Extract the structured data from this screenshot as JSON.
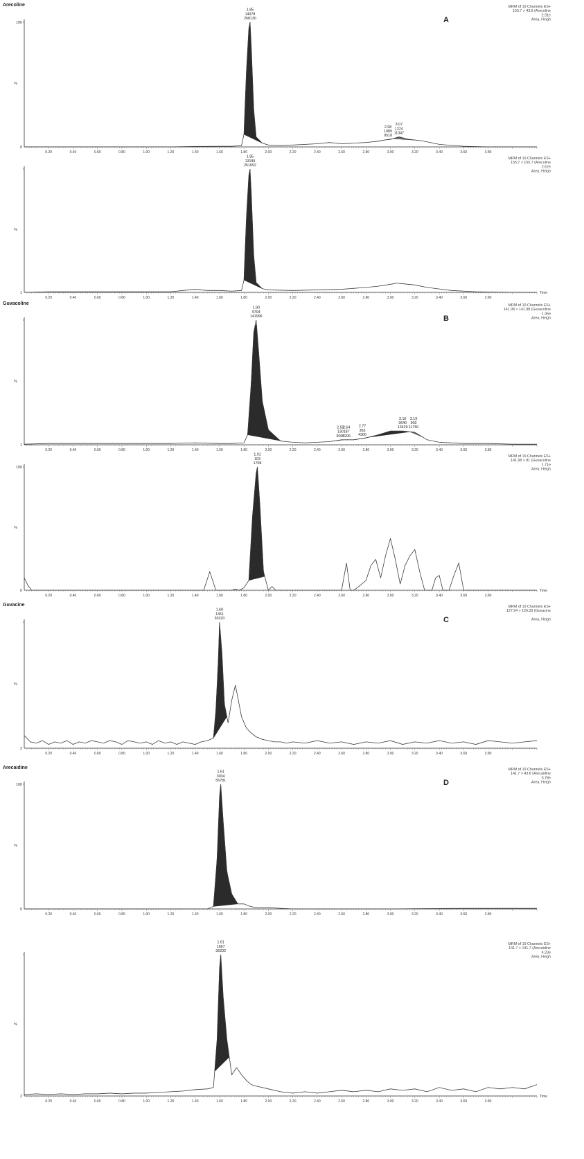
{
  "chart_data": [
    {
      "type": "line",
      "group_title": "Arecoline",
      "panel_letter": "A",
      "info_lines": [
        "MRM of 19 Channels ES+",
        "155.7 > 43.8 (Arecoline",
        "2.91e",
        "Area, Heigh"
      ],
      "y_ticks": [
        "100",
        "0"
      ],
      "y_axis_label": "%",
      "x_ticks": [
        "0.20",
        "0.40",
        "0.60",
        "0.80",
        "1.00",
        "1.20",
        "1.40",
        "1.60",
        "1.80",
        "2.00",
        "2.20",
        "2.40",
        "2.60",
        "2.80",
        "3.00",
        "3.20",
        "3.40",
        "3.60",
        "3.80"
      ],
      "x_axis_label": "",
      "xlim": [
        0,
        4.2
      ],
      "ylim": [
        0,
        100
      ],
      "shaded_peaks": [
        {
          "start": 1.8,
          "end": 1.95,
          "tone": "dark"
        },
        {
          "start": 2.87,
          "end": 3.02,
          "tone": "mid"
        },
        {
          "start": 3.02,
          "end": 3.22,
          "tone": "mid"
        }
      ],
      "peak_labels": [
        {
          "x": 1.85,
          "y": 100,
          "lines": [
            "1.85",
            "14978",
            "268130"
          ]
        },
        {
          "x": 2.98,
          "y": 6,
          "lines": [
            "2.98",
            "1089",
            "9518"
          ]
        },
        {
          "x": 3.07,
          "y": 8,
          "lines": [
            "3.07",
            "1224",
            "11347"
          ]
        }
      ],
      "x": [
        0.0,
        0.2,
        0.4,
        0.6,
        0.8,
        1.0,
        1.2,
        1.4,
        1.6,
        1.7,
        1.78,
        1.8,
        1.82,
        1.84,
        1.85,
        1.86,
        1.88,
        1.9,
        1.95,
        2.0,
        2.1,
        2.2,
        2.4,
        2.5,
        2.6,
        2.7,
        2.8,
        2.9,
        2.95,
        3.0,
        3.07,
        3.15,
        3.25,
        3.4,
        3.6,
        3.8,
        4.0,
        4.2
      ],
      "y": [
        0,
        0,
        0,
        0,
        0,
        0,
        0,
        0.3,
        0.5,
        0.5,
        1,
        10,
        60,
        95,
        100,
        80,
        30,
        8,
        3,
        1.5,
        1,
        1.5,
        2.5,
        3.5,
        2.5,
        3,
        3.5,
        4.5,
        5.5,
        6,
        8,
        6,
        5,
        2,
        0.5,
        0,
        0,
        0
      ]
    },
    {
      "type": "line",
      "group_title": "",
      "panel_letter": "",
      "info_lines": [
        "MRM of 19 Channels ES+",
        "155.7 > 155.7 (Arecoline",
        "2.67e",
        "Area, Heigh"
      ],
      "y_ticks": [
        "",
        "1"
      ],
      "y_axis_label": "%",
      "x_ticks": [
        "0.20",
        "0.40",
        "0.60",
        "0.80",
        "1.00",
        "1.20",
        "1.40",
        "1.60",
        "1.80",
        "2.00",
        "2.20",
        "2.40",
        "2.60",
        "2.80",
        "3.00",
        "3.20",
        "3.40",
        "3.60",
        "3.80"
      ],
      "x_axis_label": "Time",
      "xlim": [
        0,
        4.2
      ],
      "ylim": [
        0,
        100
      ],
      "shaded_peaks": [
        {
          "start": 1.8,
          "end": 1.95,
          "tone": "dark"
        }
      ],
      "peak_labels": [
        {
          "x": 1.85,
          "y": 100,
          "lines": [
            "1.85",
            "13199",
            "261692"
          ]
        }
      ],
      "x": [
        0.0,
        0.2,
        0.4,
        0.6,
        0.8,
        1.0,
        1.2,
        1.3,
        1.4,
        1.5,
        1.6,
        1.7,
        1.78,
        1.8,
        1.82,
        1.84,
        1.85,
        1.86,
        1.88,
        1.9,
        1.95,
        2.0,
        2.2,
        2.4,
        2.6,
        2.8,
        2.9,
        3.0,
        3.05,
        3.1,
        3.2,
        3.3,
        3.5,
        3.7,
        4.0,
        4.2
      ],
      "y": [
        0,
        0.5,
        0.5,
        0.5,
        0.5,
        0.5,
        0.5,
        1.5,
        2.5,
        1.5,
        1.5,
        1,
        1.5,
        10,
        60,
        95,
        100,
        80,
        30,
        8,
        3,
        2,
        1.5,
        2,
        2.5,
        4,
        5,
        6.5,
        7.5,
        7,
        6,
        4,
        1.5,
        0.5,
        0,
        0
      ]
    },
    {
      "type": "line",
      "group_title": "Guvacoline",
      "panel_letter": "B",
      "info_lines": [
        "MRM of 19 Channels ES+",
        "141.98 > 141.98 (Guvacoline",
        "1.45e",
        "Area, Heigh"
      ],
      "y_ticks": [
        "",
        "1"
      ],
      "y_axis_label": "%",
      "x_ticks": [
        "0.20",
        "0.40",
        "0.60",
        "0.80",
        "1.00",
        "1.20",
        "1.40",
        "1.60",
        "1.80",
        "2.00",
        "2.20",
        "2.40",
        "2.60",
        "2.80",
        "3.00",
        "3.20",
        "3.40",
        "3.60",
        "3.80"
      ],
      "x_axis_label": "",
      "xlim": [
        0,
        4.2
      ],
      "ylim": [
        0,
        100
      ],
      "shaded_peaks": [
        {
          "start": 1.83,
          "end": 2.12,
          "tone": "dark"
        },
        {
          "start": 2.52,
          "end": 2.62,
          "tone": "mid"
        },
        {
          "start": 2.62,
          "end": 2.7,
          "tone": "mid"
        },
        {
          "start": 2.7,
          "end": 2.82,
          "tone": "mid"
        },
        {
          "start": 2.82,
          "end": 3.16,
          "tone": "dark"
        },
        {
          "start": 3.16,
          "end": 3.26,
          "tone": "mid"
        }
      ],
      "peak_labels": [
        {
          "x": 1.9,
          "y": 100,
          "lines": [
            "1.90",
            "9704",
            "141996"
          ]
        },
        {
          "x": 2.59,
          "y": 4,
          "lines": [
            "2.59",
            "130",
            "3000"
          ]
        },
        {
          "x": 2.64,
          "y": 4,
          "lines": [
            "2.64",
            "187",
            "3206"
          ]
        },
        {
          "x": 2.77,
          "y": 5,
          "lines": [
            "2.77",
            "363",
            "4300"
          ]
        },
        {
          "x": 3.1,
          "y": 11,
          "lines": [
            "3.10",
            "3640",
            "13429"
          ]
        },
        {
          "x": 3.19,
          "y": 11,
          "lines": [
            "3.19",
            "903",
            "11750"
          ]
        }
      ],
      "x": [
        0.0,
        0.2,
        0.4,
        0.6,
        0.8,
        1.0,
        1.2,
        1.4,
        1.6,
        1.7,
        1.8,
        1.83,
        1.86,
        1.88,
        1.9,
        1.92,
        1.95,
        2.0,
        2.1,
        2.2,
        2.3,
        2.4,
        2.5,
        2.6,
        2.7,
        2.8,
        2.9,
        3.0,
        3.1,
        3.2,
        3.25,
        3.3,
        3.4,
        3.5,
        3.6,
        3.8,
        4.0,
        4.2
      ],
      "y": [
        0.5,
        1,
        1,
        1,
        1,
        1,
        1,
        1.5,
        1,
        1,
        1.5,
        8,
        50,
        90,
        100,
        75,
        35,
        12,
        3,
        2,
        1.5,
        2,
        2.5,
        4,
        4,
        5.5,
        8,
        11,
        11,
        10,
        7,
        4,
        2,
        1.5,
        1,
        1,
        0.5,
        0.5
      ]
    },
    {
      "type": "line",
      "group_title": "",
      "panel_letter": "",
      "info_lines": [
        "MRM of 19 Channels ES+",
        "141.98 > 81 (Guvacoline",
        "1.71e",
        "Area, Heigh"
      ],
      "y_ticks": [
        "100",
        "0"
      ],
      "y_axis_label": "%",
      "x_ticks": [
        "0.20",
        "0.40",
        "0.60",
        "0.80",
        "1.00",
        "1.20",
        "1.40",
        "1.60",
        "1.80",
        "2.00",
        "2.20",
        "2.40",
        "2.60",
        "2.80",
        "3.00",
        "3.20",
        "3.40",
        "3.60",
        "3.80"
      ],
      "x_axis_label": "Time",
      "xlim": [
        0,
        4.2
      ],
      "ylim": [
        0,
        100
      ],
      "shaded_peaks": [
        {
          "start": 1.84,
          "end": 1.97,
          "tone": "dark"
        }
      ],
      "peak_labels": [
        {
          "x": 1.91,
          "y": 100,
          "lines": [
            "1.91",
            "103",
            "1708"
          ]
        }
      ],
      "x": [
        0.0,
        0.03,
        0.06,
        0.1,
        1.4,
        1.47,
        1.52,
        1.57,
        1.62,
        1.7,
        1.73,
        1.76,
        1.8,
        1.84,
        1.87,
        1.9,
        1.91,
        1.93,
        1.96,
        2.0,
        2.03,
        2.06,
        2.1,
        2.6,
        2.64,
        2.67,
        2.7,
        2.74,
        2.8,
        2.84,
        2.88,
        2.92,
        2.96,
        3.0,
        3.04,
        3.08,
        3.12,
        3.16,
        3.2,
        3.24,
        3.28,
        3.34,
        3.37,
        3.4,
        3.43,
        3.48,
        3.52,
        3.56,
        3.6,
        4.2
      ],
      "y": [
        10,
        4,
        0,
        0,
        0,
        0,
        15,
        0,
        0,
        0,
        1,
        0,
        2,
        8,
        60,
        95,
        100,
        70,
        15,
        0,
        3,
        0,
        0,
        0,
        22,
        0,
        0,
        3,
        8,
        20,
        25,
        10,
        28,
        42,
        25,
        5,
        20,
        28,
        33,
        15,
        0,
        0,
        10,
        12,
        0,
        0,
        12,
        22,
        0,
        0
      ]
    },
    {
      "type": "line",
      "group_title": "Guvacine",
      "panel_letter": "C",
      "info_lines": [
        "MRM of 19 Channels ES+",
        "127.94 > 126.33 (Guvacine",
        "",
        "Area, Heigh"
      ],
      "y_ticks": [
        "",
        "3"
      ],
      "y_axis_label": "%",
      "x_ticks": [
        "0.20",
        "0.40",
        "0.60",
        "0.80",
        "1.00",
        "1.20",
        "1.40",
        "1.60",
        "1.80",
        "2.00",
        "2.20",
        "2.40",
        "2.60",
        "2.80",
        "3.00",
        "3.20",
        "3.40",
        "3.60",
        "3.80"
      ],
      "x_axis_label": "",
      "xlim": [
        0,
        4.2
      ],
      "ylim": [
        0,
        100
      ],
      "shaded_peaks": [
        {
          "start": 1.55,
          "end": 1.66,
          "tone": "dark"
        }
      ],
      "peak_labels": [
        {
          "x": 1.6,
          "y": 100,
          "lines": [
            "1.60",
            "1361",
            "30320"
          ]
        }
      ],
      "x": [
        0.0,
        0.05,
        0.1,
        0.15,
        0.2,
        0.25,
        0.3,
        0.35,
        0.4,
        0.45,
        0.5,
        0.55,
        0.6,
        0.65,
        0.7,
        0.75,
        0.8,
        0.85,
        0.9,
        0.95,
        1.0,
        1.05,
        1.1,
        1.15,
        1.2,
        1.25,
        1.3,
        1.35,
        1.4,
        1.45,
        1.5,
        1.55,
        1.57,
        1.59,
        1.6,
        1.62,
        1.64,
        1.67,
        1.7,
        1.73,
        1.75,
        1.78,
        1.82,
        1.86,
        1.9,
        1.95,
        2.0,
        2.05,
        2.1,
        2.15,
        2.2,
        2.3,
        2.4,
        2.5,
        2.6,
        2.7,
        2.8,
        2.9,
        3.0,
        3.1,
        3.2,
        3.3,
        3.4,
        3.5,
        3.6,
        3.7,
        3.8,
        3.9,
        4.0,
        4.1,
        4.2
      ],
      "y": [
        10,
        5,
        4,
        6,
        3,
        5,
        4,
        6,
        3,
        5,
        4,
        6,
        5,
        4,
        6,
        5,
        3,
        6,
        5,
        4,
        5,
        3,
        6,
        4,
        5,
        3,
        5,
        4,
        3,
        5,
        6,
        8,
        30,
        70,
        100,
        75,
        35,
        20,
        38,
        50,
        40,
        25,
        16,
        12,
        9,
        7,
        6,
        5,
        5,
        4,
        5,
        4,
        6,
        4,
        5,
        3,
        5,
        4,
        6,
        3,
        5,
        4,
        6,
        4,
        5,
        3,
        6,
        5,
        4,
        5,
        6
      ]
    },
    {
      "type": "line",
      "group_title": "Arecaidine",
      "panel_letter": "D",
      "info_lines": [
        "MRM of 19 Channels ES+",
        "141.7 > 43.8 (Arecaidine",
        "5.78e",
        "Area, Heigh"
      ],
      "y_ticks": [
        "100",
        "0"
      ],
      "y_axis_label": "%",
      "x_ticks": [
        "0.20",
        "0.40",
        "0.60",
        "0.80",
        "1.00",
        "1.20",
        "1.40",
        "1.60",
        "1.80",
        "2.00",
        "2.20",
        "2.40",
        "2.60",
        "2.80",
        "3.00",
        "3.20",
        "3.40",
        "3.60",
        "3.80"
      ],
      "x_axis_label": "",
      "xlim": [
        0,
        4.2
      ],
      "ylim": [
        0,
        100
      ],
      "shaded_peaks": [
        {
          "start": 1.55,
          "end": 1.75,
          "tone": "dark"
        }
      ],
      "peak_labels": [
        {
          "x": 1.61,
          "y": 100,
          "lines": [
            "1.61",
            "3034",
            "56781"
          ]
        }
      ],
      "x": [
        0.0,
        0.5,
        1.0,
        1.5,
        1.55,
        1.58,
        1.6,
        1.61,
        1.63,
        1.66,
        1.7,
        1.75,
        1.8,
        1.85,
        1.9,
        2.0,
        2.1,
        2.2,
        2.4,
        3.0,
        3.6,
        4.2
      ],
      "y": [
        0,
        0,
        0,
        0,
        2,
        40,
        90,
        100,
        70,
        30,
        12,
        4,
        4,
        2,
        1,
        1,
        0.5,
        0,
        0,
        0,
        0.5,
        0.5
      ]
    },
    {
      "type": "line",
      "group_title": "",
      "panel_letter": "",
      "info_lines": [
        "MRM of 19 Channels ES+",
        "141.7 > 141.7 (Arecaidine",
        "4.23e",
        "Area, Heigh"
      ],
      "y_ticks": [
        "",
        "2"
      ],
      "y_axis_label": "%",
      "x_ticks": [
        "0.20",
        "0.40",
        "0.60",
        "0.80",
        "1.00",
        "1.20",
        "1.40",
        "1.60",
        "1.80",
        "2.00",
        "2.20",
        "2.40",
        "2.60",
        "2.80",
        "3.00",
        "3.20",
        "3.40",
        "3.60",
        "3.80"
      ],
      "x_axis_label": "Time",
      "xlim": [
        0,
        4.2
      ],
      "ylim": [
        0,
        100
      ],
      "shaded_peaks": [
        {
          "start": 1.56,
          "end": 1.68,
          "tone": "dark"
        }
      ],
      "peak_labels": [
        {
          "x": 1.61,
          "y": 100,
          "lines": [
            "1.61",
            "1667",
            "36202"
          ]
        }
      ],
      "x": [
        0.0,
        0.1,
        0.2,
        0.3,
        0.4,
        0.5,
        0.6,
        0.7,
        0.8,
        0.9,
        1.0,
        1.1,
        1.2,
        1.3,
        1.4,
        1.5,
        1.55,
        1.58,
        1.6,
        1.61,
        1.63,
        1.66,
        1.7,
        1.74,
        1.78,
        1.82,
        1.86,
        1.9,
        2.0,
        2.1,
        2.2,
        2.3,
        2.4,
        2.5,
        2.6,
        2.7,
        2.8,
        2.9,
        3.0,
        3.1,
        3.2,
        3.3,
        3.4,
        3.5,
        3.6,
        3.7,
        3.8,
        3.9,
        4.0,
        4.1,
        4.2
      ],
      "y": [
        1,
        1.5,
        1,
        1.5,
        1,
        1.5,
        1.5,
        2,
        1.5,
        2,
        2,
        2.5,
        3,
        3.5,
        4.5,
        5,
        6,
        40,
        90,
        100,
        70,
        40,
        15,
        20,
        15,
        11,
        8,
        7,
        5,
        3,
        2,
        3,
        2,
        3,
        4,
        3,
        4,
        3,
        5,
        4,
        5,
        3,
        6,
        4,
        5,
        3,
        6,
        5,
        6,
        5,
        8
      ]
    }
  ]
}
